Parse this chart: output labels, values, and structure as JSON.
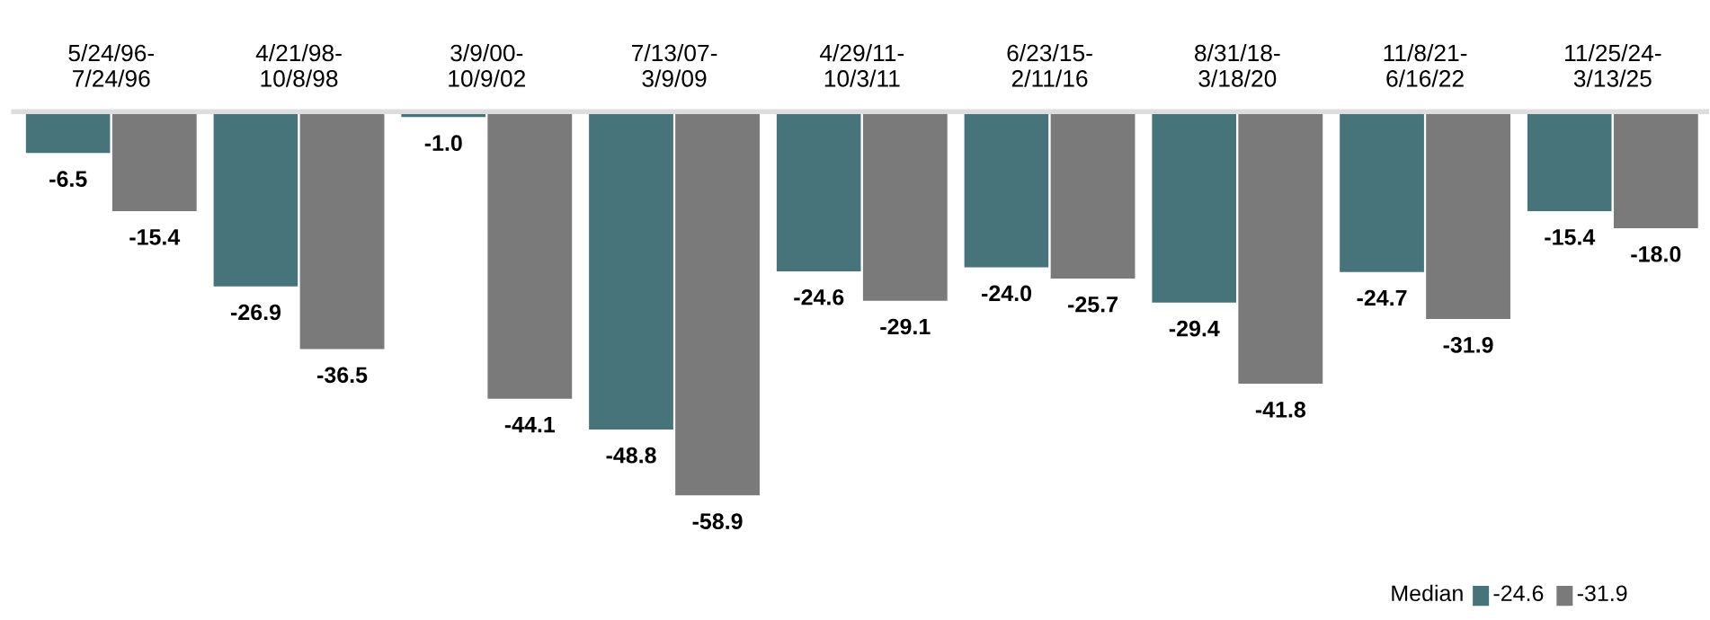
{
  "chart_data": {
    "type": "bar",
    "categories": [
      "5/24/96-\n7/24/96",
      "4/21/98-\n10/8/98",
      "3/9/00-\n10/9/02",
      "7/13/07-\n3/9/09",
      "4/29/11-\n10/3/11",
      "6/23/15-\n2/11/16",
      "8/31/18-\n3/18/20",
      "11/8/21-\n6/16/22",
      "11/25/24-\n3/13/25"
    ],
    "series": [
      {
        "color": "#47737a",
        "values": [
          -6.5,
          -26.9,
          -1.0,
          -48.8,
          -24.6,
          -24.0,
          -29.4,
          -24.7,
          -15.4
        ],
        "value_labels": [
          "-6.5",
          "-26.9",
          "-1.0",
          "-48.8",
          "-24.6",
          "-24.0",
          "-29.4",
          "-24.7",
          "-15.4"
        ]
      },
      {
        "color": "#7a7a7a",
        "values": [
          -15.4,
          -36.5,
          -44.1,
          -58.9,
          -29.1,
          -25.7,
          -41.8,
          -31.9,
          -18.0
        ],
        "value_labels": [
          "-15.4",
          "-36.5",
          "-44.1",
          "-58.9",
          "-29.1",
          "-25.7",
          "-41.8",
          "-31.9",
          "-18.0"
        ]
      }
    ],
    "grid": false,
    "legend": false,
    "annotations": [
      "Median",
      "-24.6",
      "-31.9"
    ]
  }
}
